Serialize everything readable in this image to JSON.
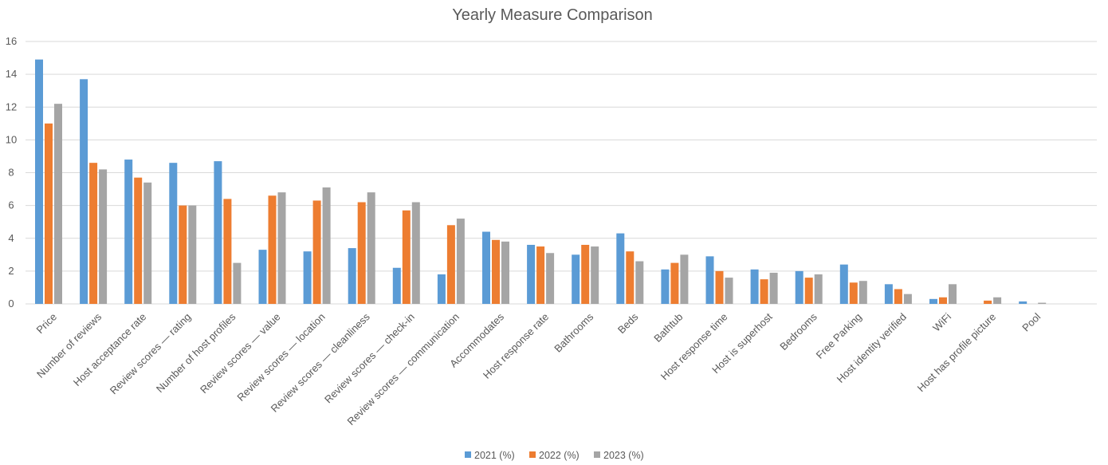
{
  "chart_data": {
    "type": "bar",
    "title": "Yearly Measure Comparison",
    "xlabel": "",
    "ylabel": "",
    "ylim": [
      0,
      16
    ],
    "yticks": [
      0,
      2,
      4,
      6,
      8,
      10,
      12,
      14,
      16
    ],
    "grid": true,
    "legend": "bottom",
    "categories": [
      "Price",
      "Number of reviews",
      "Host acceptance rate",
      "Review scores — rating",
      "Number of host profiles",
      "Review scores — value",
      "Review scores — location",
      "Review scores — cleanliness",
      "Review scores — check-in",
      "Review scores — communication",
      "Accommodates",
      "Host response rate",
      "Bathrooms",
      "Beds",
      "Bathtub",
      "Host response time",
      "Host is superhost",
      "Bedrooms",
      "Free Parking",
      "Host identity verified",
      "WiFi",
      "Host has profile picture",
      "Pool"
    ],
    "series": [
      {
        "name": "2021 (%)",
        "color": "#5B9BD5",
        "values": [
          14.9,
          13.7,
          8.8,
          8.6,
          8.7,
          3.3,
          3.2,
          3.4,
          2.2,
          1.8,
          4.4,
          3.6,
          3.0,
          4.3,
          2.1,
          2.9,
          2.1,
          2.0,
          2.4,
          1.2,
          0.3,
          0.0,
          0.15
        ]
      },
      {
        "name": "2022 (%)",
        "color": "#ED7D31",
        "values": [
          11.0,
          8.6,
          7.7,
          6.0,
          6.4,
          6.6,
          6.3,
          6.2,
          5.7,
          4.8,
          3.9,
          3.5,
          3.6,
          3.2,
          2.5,
          2.0,
          1.5,
          1.6,
          1.3,
          0.9,
          0.4,
          0.2,
          0.0
        ]
      },
      {
        "name": "2023 (%)",
        "color": "#A5A5A5",
        "values": [
          12.2,
          8.2,
          7.4,
          6.0,
          2.5,
          6.8,
          7.1,
          6.8,
          6.2,
          5.2,
          3.8,
          3.1,
          3.5,
          2.6,
          3.0,
          1.6,
          1.9,
          1.8,
          1.4,
          0.6,
          1.2,
          0.4,
          0.07
        ]
      }
    ]
  }
}
